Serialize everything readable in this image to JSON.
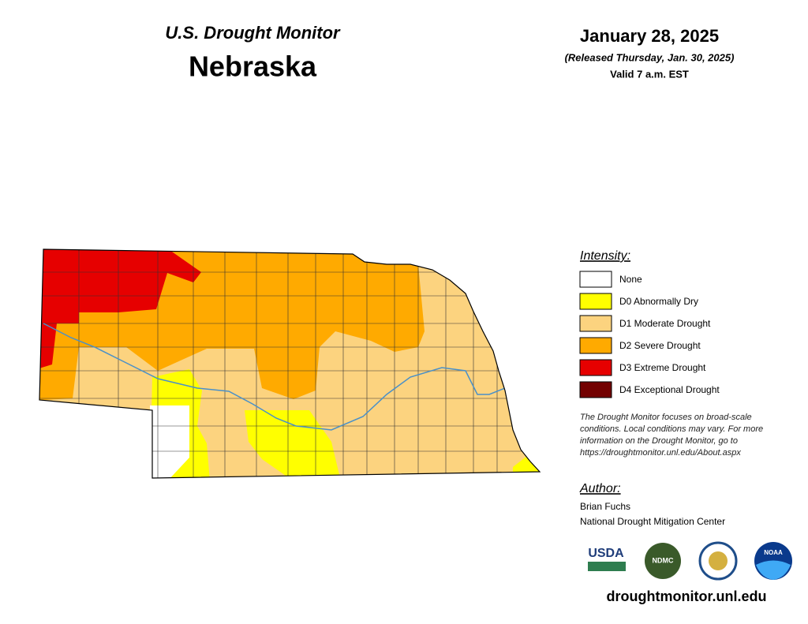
{
  "header": {
    "title": "U.S. Drought Monitor",
    "state": "Nebraska",
    "date": "January 28, 2025",
    "released": "(Released Thursday, Jan. 30, 2025)",
    "valid": "Valid 7 a.m. EST"
  },
  "legend": {
    "title": "Intensity:",
    "items": [
      {
        "label": "None",
        "color": "#ffffff"
      },
      {
        "label": "D0 Abnormally Dry",
        "color": "#ffff00"
      },
      {
        "label": "D1 Moderate Drought",
        "color": "#fcd37f"
      },
      {
        "label": "D2 Severe Drought",
        "color": "#ffaa00"
      },
      {
        "label": "D3 Extreme Drought",
        "color": "#e60000"
      },
      {
        "label": "D4 Exceptional Drought",
        "color": "#730000"
      }
    ]
  },
  "note": [
    "The Drought Monitor focuses on broad-scale",
    "conditions. Local conditions may vary. For more",
    "information on the Drought Monitor, go to",
    "https://droughtmonitor.unl.edu/About.aspx"
  ],
  "author": {
    "title": "Author:",
    "name": "Brian Fuchs",
    "org": "National Drought Mitigation Center"
  },
  "logos": [
    "USDA",
    "NDMC",
    "NOAA"
  ],
  "url": "droughtmonitor.unl.edu"
}
